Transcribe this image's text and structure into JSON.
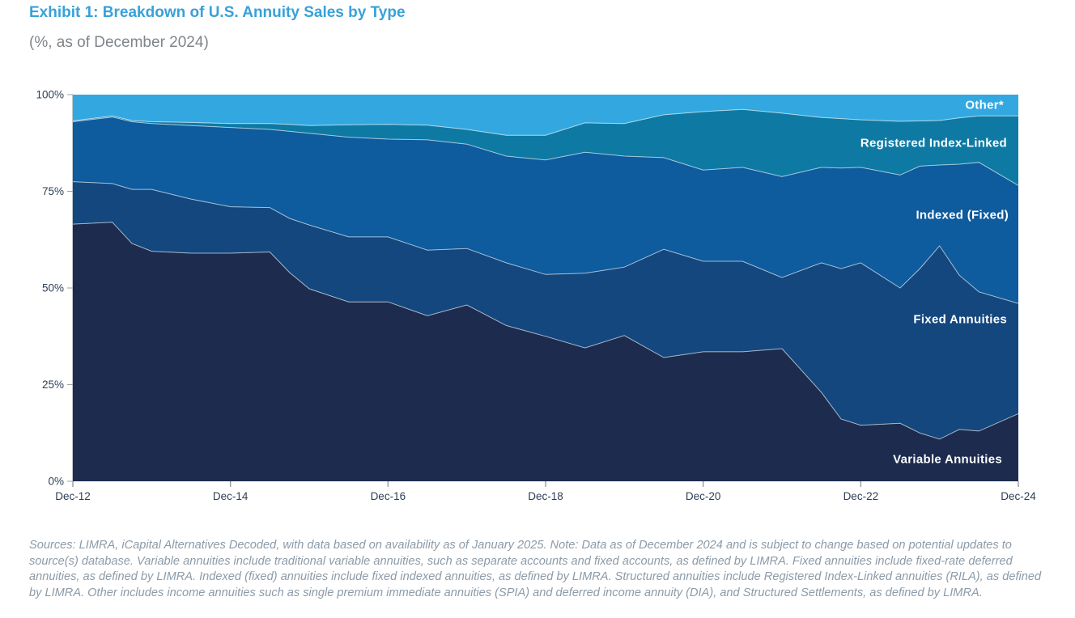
{
  "header": {
    "title": "Exhibit 1: Breakdown of U.S. Annuity Sales by Type",
    "subtitle": "(%, as of December 2024)"
  },
  "chart_data": {
    "type": "area",
    "stacked": true,
    "unit": "percent of total annuity sales",
    "title": "Breakdown of U.S. Annuity Sales by Type",
    "xlabel": "",
    "ylabel": "",
    "ylim": [
      0,
      100
    ],
    "grid": false,
    "legend_position": "labels-inside-plot",
    "x_axis": {
      "ticks": [
        {
          "t": 0,
          "label": "Dec-12"
        },
        {
          "t": 2,
          "label": "Dec-14"
        },
        {
          "t": 4,
          "label": "Dec-16"
        },
        {
          "t": 6,
          "label": "Dec-18"
        },
        {
          "t": 8,
          "label": "Dec-20"
        },
        {
          "t": 10,
          "label": "Dec-22"
        },
        {
          "t": 12,
          "label": "Dec-24"
        }
      ]
    },
    "y_axis": {
      "ticks": [
        {
          "value": 0,
          "label": "0%"
        },
        {
          "value": 25,
          "label": "25%"
        },
        {
          "value": 50,
          "label": "50%"
        },
        {
          "value": 75,
          "label": "75%"
        },
        {
          "value": 100,
          "label": "100%"
        }
      ]
    },
    "t": [
      0,
      0.5,
      0.75,
      1,
      1.5,
      2,
      2.5,
      2.75,
      3,
      3.5,
      4,
      4.5,
      5,
      5.5,
      6,
      6.5,
      7,
      7.5,
      8,
      8.5,
      9,
      9.5,
      9.75,
      10,
      10.5,
      10.75,
      11,
      11.25,
      11.5,
      12
    ],
    "t_note": "t = years since Dec-2012; sampled semiannually with extra quarterly points at sharp turns",
    "series": [
      {
        "name": "variable-annuities",
        "label": "Variable Annuities",
        "color": "#1C2B4E",
        "values": [
          66.5,
          67.0,
          61.5,
          59.5,
          59.0,
          59.0,
          59.3,
          54.0,
          49.8,
          46.4,
          46.4,
          42.8,
          45.6,
          40.3,
          37.5,
          34.5,
          37.7,
          32.0,
          33.5,
          33.5,
          34.3,
          23.0,
          16.1,
          14.5,
          15.0,
          12.5,
          10.9,
          13.4,
          13.0,
          17.5
        ]
      },
      {
        "name": "fixed-annuities",
        "label": "Fixed Annuities",
        "color": "#14477E",
        "values": [
          11.0,
          10.0,
          14.0,
          16.0,
          14.0,
          12.0,
          11.5,
          14.0,
          16.5,
          16.8,
          16.8,
          17.0,
          14.6,
          16.2,
          16.0,
          19.3,
          17.7,
          28.0,
          23.4,
          23.4,
          18.4,
          33.5,
          38.9,
          42.0,
          35.0,
          42.5,
          50.0,
          39.9,
          36.0,
          28.5
        ]
      },
      {
        "name": "indexed-fixed",
        "label": "Indexed (Fixed)",
        "color": "#0E5B9D",
        "values": [
          15.5,
          17.2,
          17.5,
          17.0,
          19.0,
          20.5,
          20.2,
          22.5,
          23.7,
          25.8,
          25.3,
          28.5,
          27.0,
          27.6,
          29.6,
          31.3,
          28.7,
          23.7,
          23.6,
          24.3,
          26.1,
          24.7,
          26.0,
          24.7,
          29.2,
          26.5,
          20.9,
          28.7,
          33.5,
          30.5
        ]
      },
      {
        "name": "registered-index-linked",
        "label": "Registered Index-Linked",
        "color": "#0E7AA4",
        "values": [
          0.2,
          0.3,
          0.3,
          0.5,
          0.8,
          1.0,
          1.5,
          1.8,
          2.0,
          3.2,
          3.8,
          3.8,
          3.8,
          5.4,
          6.4,
          7.6,
          8.4,
          11.1,
          15.1,
          15.0,
          16.4,
          12.9,
          12.8,
          12.3,
          13.9,
          11.7,
          11.5,
          12.0,
          12.0,
          18.0
        ]
      },
      {
        "name": "other",
        "label": "Other*",
        "color": "#33A8E0",
        "values": [
          6.8,
          5.5,
          6.7,
          7.0,
          7.2,
          7.5,
          7.5,
          7.7,
          8.0,
          7.8,
          7.7,
          7.9,
          9.0,
          10.5,
          10.5,
          7.3,
          7.5,
          5.2,
          4.4,
          3.8,
          4.8,
          5.9,
          6.2,
          6.5,
          6.9,
          6.8,
          6.7,
          6.0,
          5.5,
          5.5
        ]
      }
    ],
    "colors": {
      "boundary_stroke": "rgba(255,255,255,0.6)",
      "axis_text": "#2E3F55",
      "tick_mark": "#9AA2A9",
      "axis_line": "#C3C9CE"
    }
  },
  "source_note": "Sources: LIMRA, iCapital Alternatives Decoded, with data based on availability as of January 2025. Note: Data as of December 2024 and is subject to change based on potential updates to source(s) database. Variable annuities include traditional variable annuities, such as separate accounts and fixed accounts, as defined by LIMRA. Fixed annuities include fixed-rate deferred annuities, as defined by LIMRA. Indexed (fixed) annuities include fixed indexed annuities, as defined by LIMRA. Structured annuities include Registered Index-Linked annuities (RILA), as defined by LIMRA. Other includes income annuities such as single premium immediate annuities (SPIA) and deferred income annuity (DIA), and Structured Settlements, as defined by LIMRA."
}
